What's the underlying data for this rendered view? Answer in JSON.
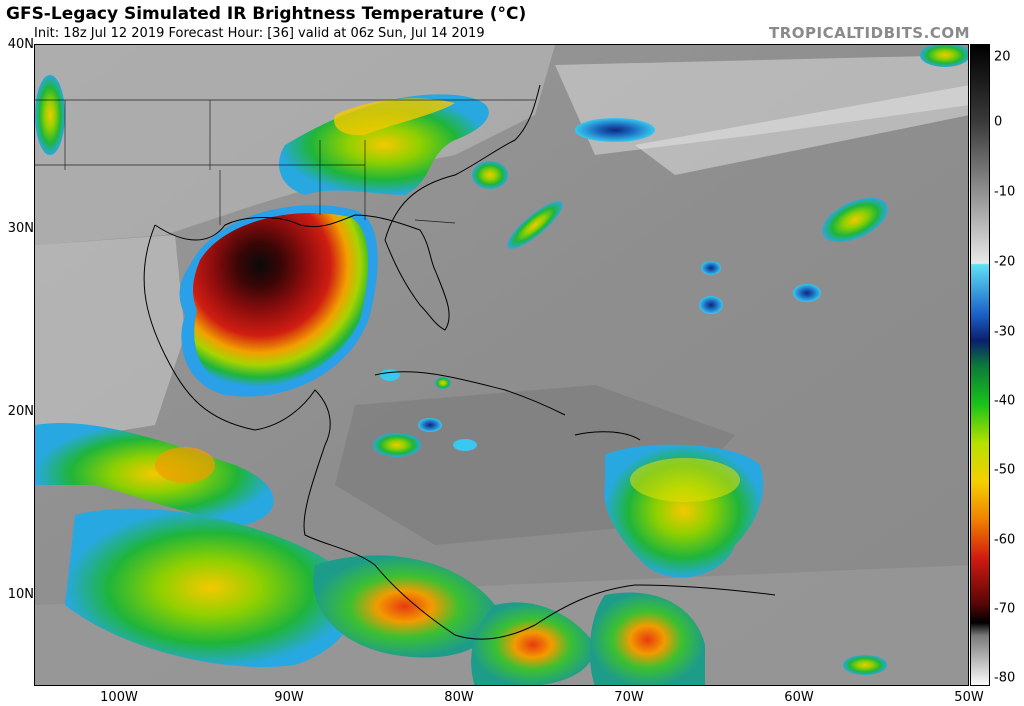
{
  "header": {
    "title": "GFS-Legacy Simulated IR Brightness Temperature (°C)",
    "subtitle": "Init: 18z Jul 12 2019   Forecast Hour: [36]   valid at 06z Sun, Jul 14 2019",
    "credit": "TROPICALTIDBITS.COM"
  },
  "map": {
    "lat_labels": [
      "40N",
      "30N",
      "20N",
      "10N"
    ],
    "lon_labels": [
      "100W",
      "90W",
      "80W",
      "70W",
      "60W",
      "50W"
    ]
  },
  "colorbar": {
    "labels": [
      "20",
      "0",
      "-10",
      "-20",
      "-30",
      "-40",
      "-50",
      "-60",
      "-70",
      "-80"
    ]
  }
}
